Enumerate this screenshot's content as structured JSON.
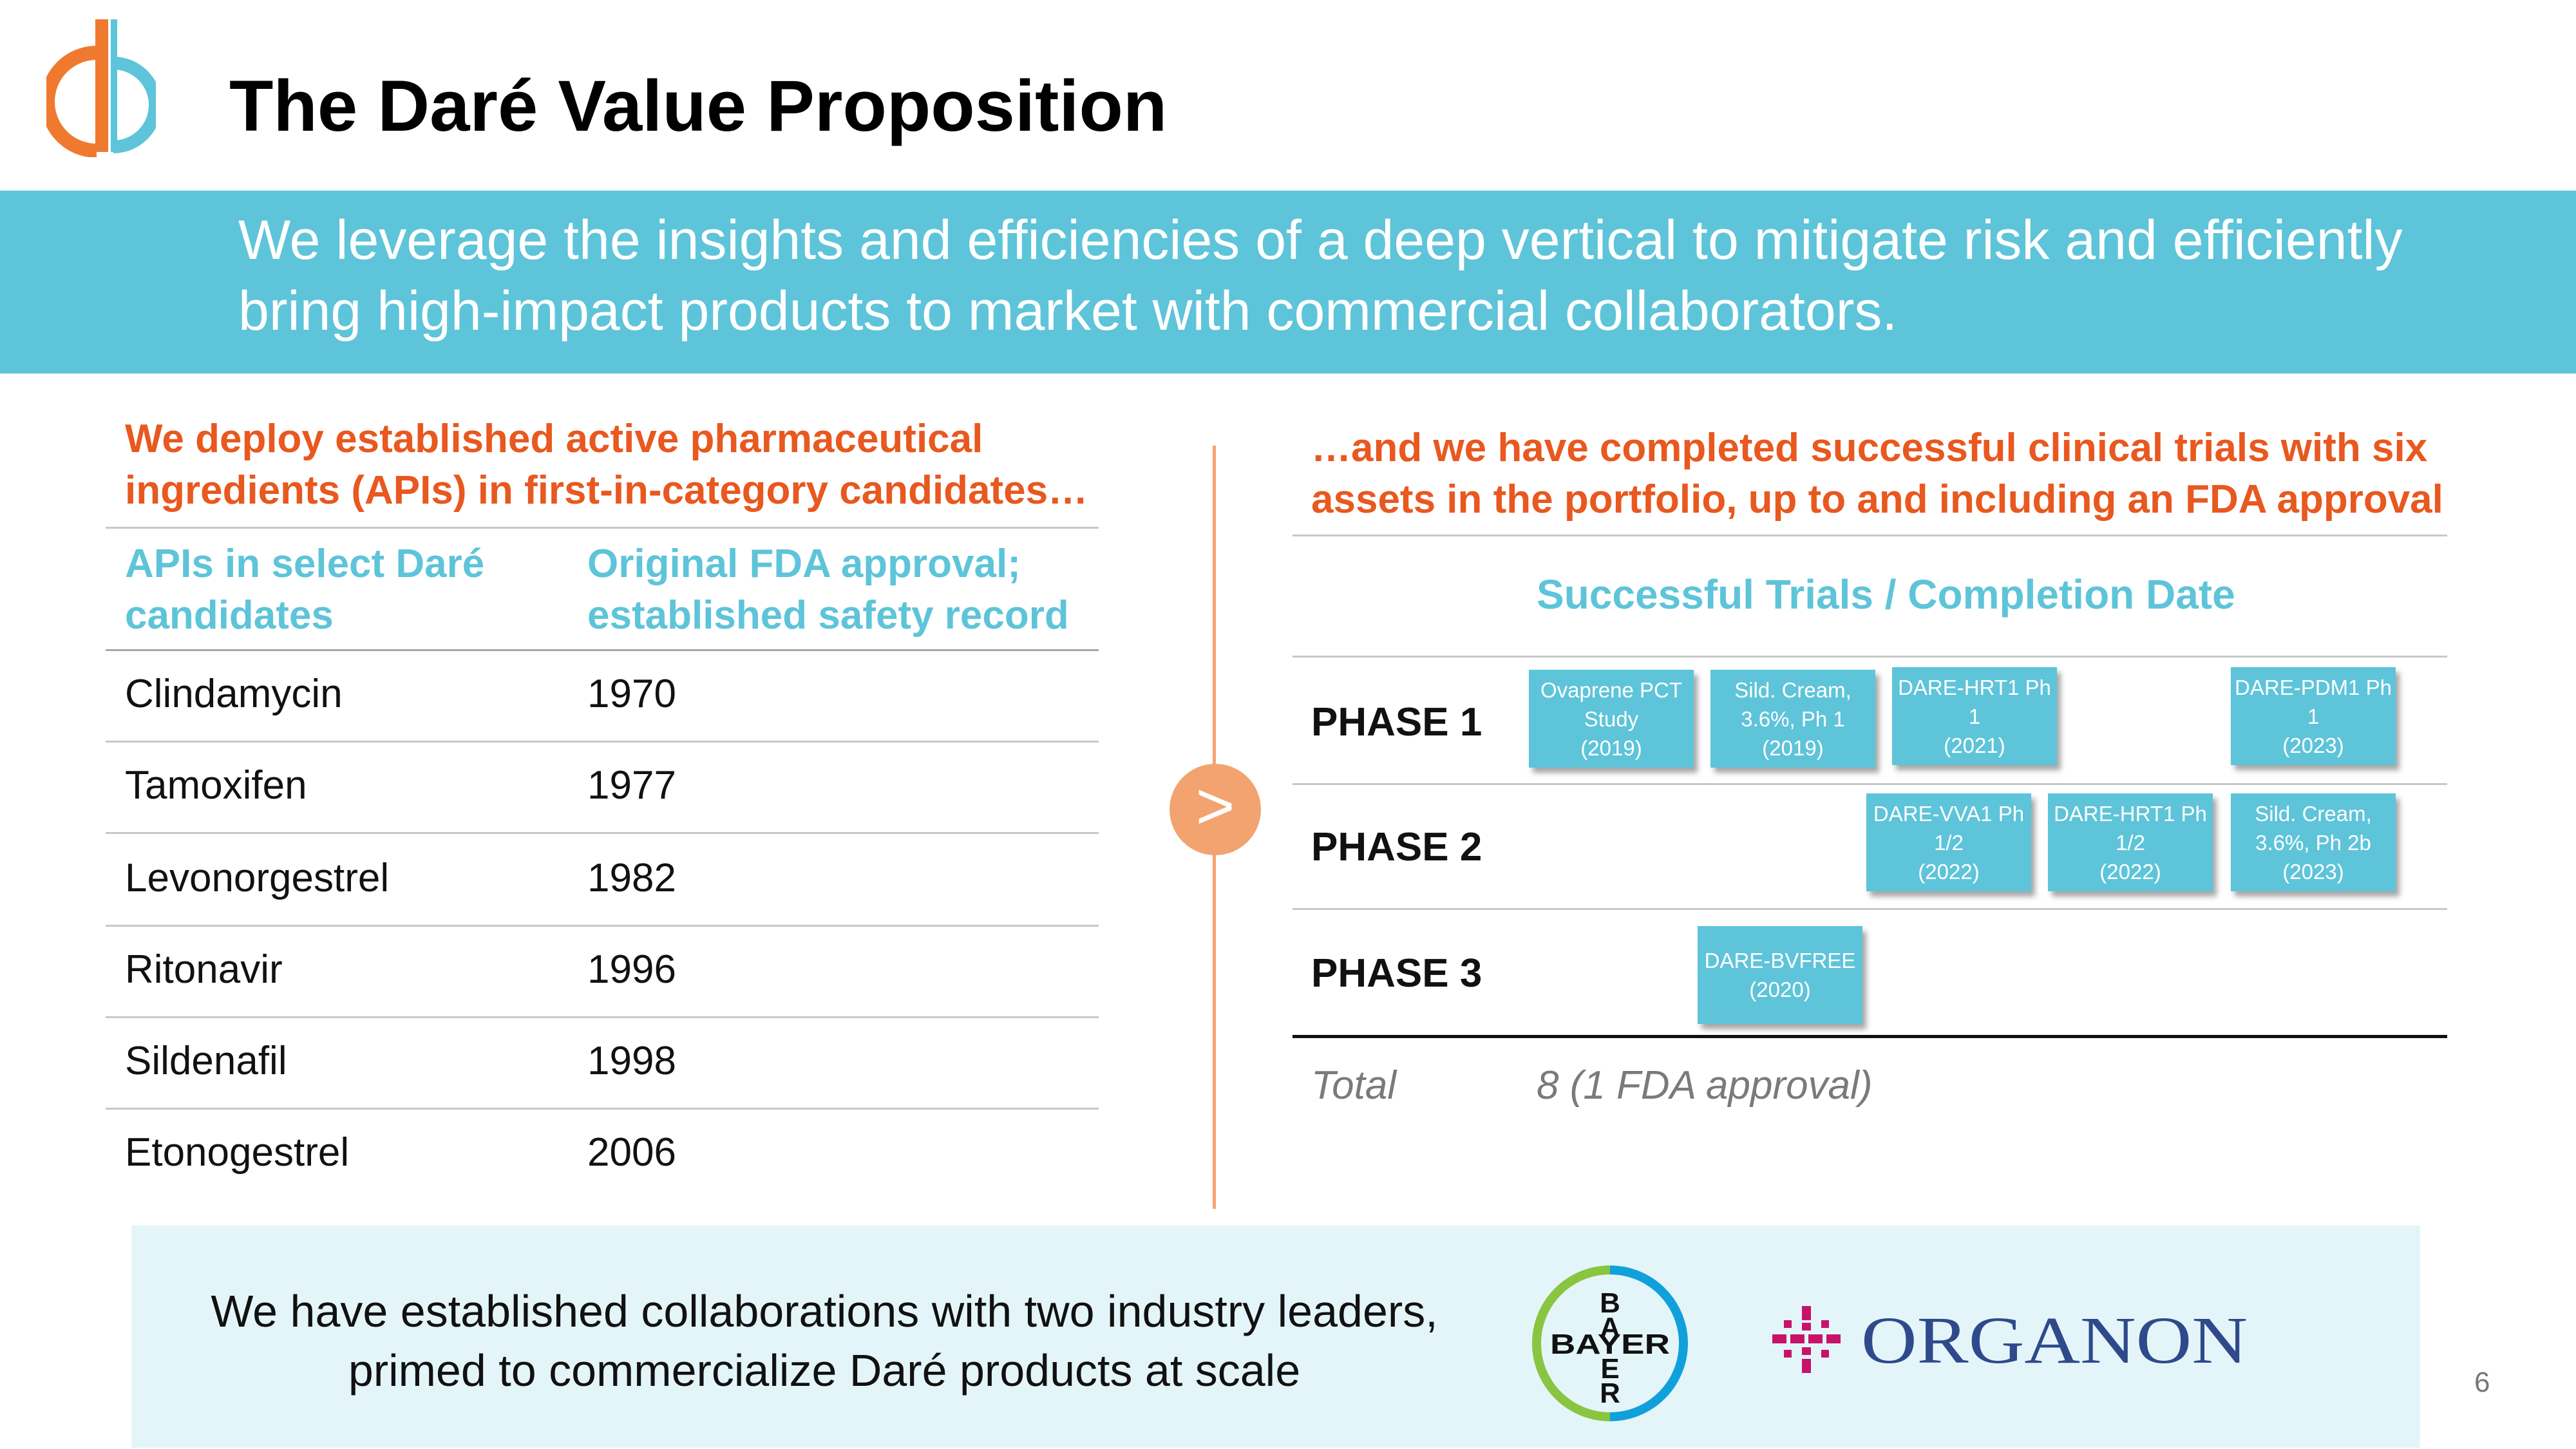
{
  "header": {
    "title": "The Daré Value Proposition",
    "logo_icon": "dare-logo-icon"
  },
  "banner": {
    "text": "We leverage the insights and efficiencies of a deep vertical to mitigate risk and efficiently bring high-impact products to market with commercial collaborators."
  },
  "left_panel": {
    "heading": "We deploy established active pharmaceutical ingredients (APIs) in first-in-category candidates…",
    "col1_header": "APIs in select Daré candidates",
    "col2_header": "Original FDA approval; established safety record",
    "rows": [
      {
        "api": "Clindamycin",
        "year": "1970"
      },
      {
        "api": "Tamoxifen",
        "year": "1977"
      },
      {
        "api": "Levonorgestrel",
        "year": "1982"
      },
      {
        "api": "Ritonavir",
        "year": "1996"
      },
      {
        "api": "Sildenafil",
        "year": "1998"
      },
      {
        "api": "Etonogestrel",
        "year": "2006"
      }
    ]
  },
  "divider": {
    "arrow": ">"
  },
  "right_panel": {
    "heading": "…and we have completed successful clinical trials with six assets in the portfolio, up to and including an FDA approval",
    "table_title": "Successful Trials / Completion Date",
    "phases": [
      {
        "label": "PHASE 1",
        "trials": [
          {
            "name": "Ovaprene PCT Study",
            "date": "(2019)"
          },
          {
            "name": "Sild. Cream, 3.6%, Ph 1",
            "date": "(2019)"
          },
          {
            "name": "DARE-HRT1 Ph 1",
            "date": "(2021)"
          },
          {
            "name": "DARE-PDM1 Ph 1",
            "date": "(2023)"
          }
        ]
      },
      {
        "label": "PHASE 2",
        "trials": [
          {
            "name": "DARE-VVA1 Ph 1/2",
            "date": "(2022)"
          },
          {
            "name": "DARE-HRT1 Ph 1/2",
            "date": "(2022)"
          },
          {
            "name": "Sild. Cream, 3.6%, Ph 2b",
            "date": "(2023)"
          }
        ]
      },
      {
        "label": "PHASE 3",
        "trials": [
          {
            "name": "DARE-BVFREE",
            "date": "(2020)"
          }
        ]
      }
    ],
    "total_label": "Total",
    "total_value": "8 (1 FDA approval)"
  },
  "footer": {
    "collab_text": "We have established collaborations with two industry leaders, primed to commercialize Daré products at scale",
    "bayer_letters": [
      "B",
      "A",
      "Y",
      "E",
      "R"
    ],
    "bayer_logo": "bayer-cross-logo",
    "organon_name": "ORGANON",
    "organon_color": "#c8126a",
    "bayer_green": "#89c540",
    "bayer_blue": "#10a0dc",
    "page_number": "6"
  },
  "colors": {
    "accent_blue": "#5ec4d9",
    "accent_orange": "#e8581f",
    "divider_orange": "#f3a370",
    "light_panel": "#e4f5fa"
  }
}
